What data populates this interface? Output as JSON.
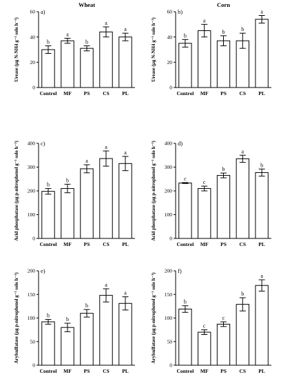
{
  "chart_data": [
    {
      "type": "bar",
      "panel_label": "a)",
      "title": "Wheat",
      "ylabel": "Urease (μg N-NH4 g⁻¹ solo h⁻¹)",
      "categories": [
        "Control",
        "MF",
        "PS",
        "CS",
        "PL"
      ],
      "values": [
        30,
        37,
        31,
        44,
        40
      ],
      "errors": [
        3,
        2,
        2,
        4,
        3
      ],
      "significance": [
        "b",
        "a",
        "b",
        "a",
        "a"
      ],
      "ylim": [
        0,
        60
      ],
      "yticks": [
        0,
        20,
        40,
        60
      ],
      "grid": false,
      "bar_color": "#ffffff"
    },
    {
      "type": "bar",
      "panel_label": "b)",
      "title": "Corn",
      "ylabel": "Urease (μg N-NH4 g⁻¹ solo h⁻¹)",
      "categories": [
        "Control",
        "MF",
        "PS",
        "CS",
        "PL"
      ],
      "values": [
        35,
        45,
        37,
        37,
        54
      ],
      "errors": [
        3,
        5,
        4,
        6,
        3
      ],
      "significance": [
        "b",
        "a",
        "b",
        "b",
        "a"
      ],
      "ylim": [
        0,
        60
      ],
      "yticks": [
        0,
        20,
        40,
        60
      ],
      "grid": false,
      "bar_color": "#ffffff"
    },
    {
      "type": "bar",
      "panel_label": "c)",
      "title": "",
      "ylabel": "Acid phosphatase (μg p-nitrophenol g⁻¹ solo h⁻¹)",
      "categories": [
        "Control",
        "MF",
        "PS",
        "CS",
        "PL"
      ],
      "values": [
        198,
        210,
        293,
        336,
        315
      ],
      "errors": [
        12,
        18,
        17,
        32,
        30
      ],
      "significance": [
        "b",
        "b",
        "a",
        "a",
        "a"
      ],
      "ylim": [
        0,
        400
      ],
      "yticks": [
        0,
        100,
        200,
        300,
        400
      ],
      "grid": false,
      "bar_color": "#ffffff"
    },
    {
      "type": "bar",
      "panel_label": "d)",
      "title": "",
      "ylabel": "Acid phosphatase (μg p-nitrophenol g⁻¹ solo h⁻¹)",
      "categories": [
        "Control",
        "MF",
        "PS",
        "CS",
        "PL"
      ],
      "values": [
        233,
        210,
        265,
        335,
        277
      ],
      "errors": [
        2,
        10,
        10,
        15,
        15
      ],
      "significance": [
        "c",
        "c",
        "b",
        "a",
        "b"
      ],
      "ylim": [
        0,
        400
      ],
      "yticks": [
        0,
        100,
        200,
        300,
        400
      ],
      "grid": false,
      "bar_color": "#ffffff"
    },
    {
      "type": "bar",
      "panel_label": "e)",
      "title": "",
      "ylabel": "Arylsulfatase (μg p-nitrophenol g⁻¹ solo h⁻¹)",
      "categories": [
        "Control",
        "MF",
        "PS",
        "CS",
        "PL"
      ],
      "values": [
        92,
        80,
        110,
        148,
        131
      ],
      "errors": [
        5,
        9,
        8,
        14,
        14
      ],
      "significance": [
        "b",
        "b",
        "b",
        "a",
        "a"
      ],
      "ylim": [
        0,
        200
      ],
      "yticks": [
        0,
        50,
        100,
        150,
        200
      ],
      "grid": false,
      "bar_color": "#ffffff"
    },
    {
      "type": "bar",
      "panel_label": "f)",
      "title": "",
      "ylabel": "Arylsulfatase (μg p-nitrophenol g⁻¹ solo h⁻¹)",
      "categories": [
        "Control",
        "MF",
        "PS",
        "CS",
        "PL"
      ],
      "values": [
        119,
        70,
        87,
        129,
        169
      ],
      "errors": [
        7,
        5,
        5,
        14,
        12
      ],
      "significance": [
        "b",
        "c",
        "c",
        "b",
        "a"
      ],
      "ylim": [
        0,
        200
      ],
      "yticks": [
        0,
        50,
        100,
        150,
        200
      ],
      "grid": false,
      "bar_color": "#ffffff"
    }
  ]
}
